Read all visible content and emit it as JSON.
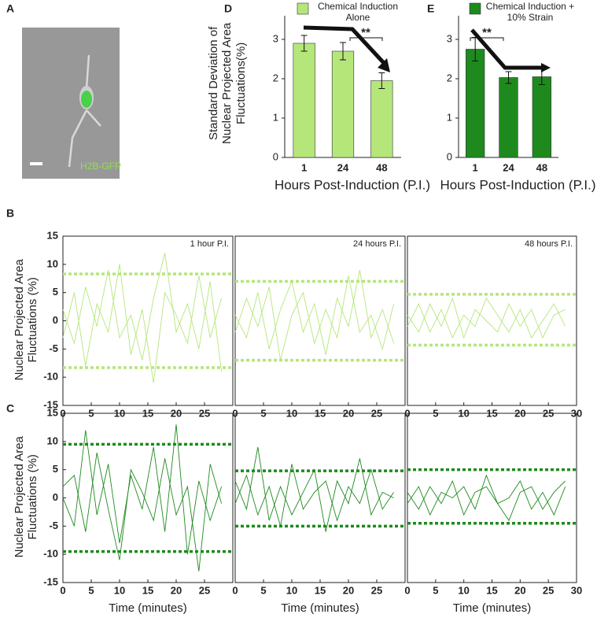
{
  "image_panel": {
    "label": "A",
    "caption": "H2B-GFP"
  },
  "chart_data": [
    {
      "type": "bar",
      "panel_label": "D",
      "categories": [
        "1",
        "24",
        "48"
      ],
      "series": [
        {
          "name": "Chemical Induction Alone",
          "color": "#b5e67a",
          "values": [
            2.9,
            2.7,
            1.95
          ],
          "errors": [
            0.2,
            0.22,
            0.2
          ]
        }
      ],
      "ylim": [
        0,
        3.6
      ],
      "yticks": [
        0,
        1,
        2,
        3
      ],
      "ylabel": "Standard Deviation of Nuclear Projected Area Fluctuations(%)",
      "xlabel": "Hours Post-Induction (P.I.)",
      "annotation": "**"
    },
    {
      "type": "bar",
      "panel_label": "E",
      "categories": [
        "1",
        "24",
        "48"
      ],
      "series": [
        {
          "name": "Chemical Induction + 10% Strain",
          "color": "#1e8a1e",
          "values": [
            2.75,
            2.03,
            2.05
          ],
          "errors": [
            0.3,
            0.15,
            0.2
          ]
        }
      ],
      "ylim": [
        0,
        3.6
      ],
      "yticks": [
        0,
        1,
        2,
        3
      ],
      "xlabel": "Hours Post-Induction (P.I.)",
      "annotation": "**"
    },
    {
      "type": "line",
      "panel_label": "B",
      "annotation": "1 hour P.I.",
      "ylabel": "Nuclear Projected Area Fluctuations (%)",
      "x": [
        0,
        2,
        4,
        6,
        8,
        10,
        12,
        14,
        16,
        18,
        20,
        22,
        24,
        26,
        28
      ],
      "xlim": [
        0,
        30
      ],
      "xticks": [
        0,
        5,
        10,
        15,
        20,
        25
      ],
      "ylim": [
        -15,
        15
      ],
      "yticks": [
        -15,
        -10,
        -5,
        0,
        5,
        10,
        15
      ],
      "thresholds": [
        8.3,
        -8.3
      ],
      "color": "#b5e67a",
      "series": [
        {
          "values": [
            2,
            -4,
            6,
            -1,
            9,
            -3,
            1,
            -7,
            4,
            12,
            -2,
            3,
            -5,
            7,
            -9
          ]
        },
        {
          "values": [
            -3,
            5,
            -8,
            3,
            -2,
            10,
            -6,
            2,
            -11,
            5,
            1,
            -4,
            8,
            -3,
            4
          ]
        }
      ]
    },
    {
      "type": "line",
      "annotation": "24 hours P.I.",
      "x": [
        0,
        2,
        4,
        6,
        8,
        10,
        12,
        14,
        16,
        18,
        20,
        22,
        24,
        26,
        28
      ],
      "xlim": [
        0,
        30
      ],
      "xticks": [
        0,
        5,
        10,
        15,
        20,
        25
      ],
      "ylim": [
        -15,
        15
      ],
      "thresholds": [
        7,
        -7
      ],
      "color": "#b5e67a",
      "series": [
        {
          "values": [
            1,
            -3,
            5,
            -5,
            2,
            7,
            -2,
            3,
            -6,
            4,
            -1,
            9,
            -3,
            2,
            -4
          ]
        },
        {
          "values": [
            -2,
            4,
            -1,
            6,
            -7,
            1,
            5,
            -4,
            2,
            -3,
            8,
            -2,
            1,
            -5,
            3
          ]
        }
      ]
    },
    {
      "type": "line",
      "annotation": "48 hours P.I.",
      "x": [
        0,
        2,
        4,
        6,
        8,
        10,
        12,
        14,
        16,
        18,
        20,
        22,
        24,
        26,
        28
      ],
      "xlim": [
        0,
        30
      ],
      "xticks": [
        0,
        5,
        10,
        15,
        20,
        25,
        30
      ],
      "ylim": [
        -15,
        15
      ],
      "thresholds": [
        4.7,
        -4.3
      ],
      "color": "#b5e67a",
      "series": [
        {
          "values": [
            1,
            -2,
            3,
            -1,
            4,
            -3,
            2,
            0,
            -2,
            3,
            -1,
            2,
            -3,
            1,
            2
          ]
        },
        {
          "values": [
            -1,
            3,
            -2,
            2,
            -3,
            1,
            -1,
            4,
            1,
            -2,
            2,
            -3,
            0,
            3,
            -1
          ]
        }
      ]
    },
    {
      "type": "line",
      "panel_label": "C",
      "ylabel": "Nuclear Projected Area Fluctuations (%)",
      "xlabel": "Time (minutes)",
      "x": [
        0,
        2,
        4,
        6,
        8,
        10,
        12,
        14,
        16,
        18,
        20,
        22,
        24,
        26,
        28
      ],
      "xlim": [
        0,
        30
      ],
      "xticks": [
        0,
        5,
        10,
        15,
        20,
        25
      ],
      "ylim": [
        -15,
        15
      ],
      "yticks": [
        -15,
        -10,
        -5,
        0,
        5,
        10,
        15
      ],
      "thresholds": [
        9.5,
        -9.5
      ],
      "color": "#1e8a1e",
      "series": [
        {
          "values": [
            0,
            -5,
            12,
            -3,
            6,
            -8,
            4,
            -2,
            9,
            -6,
            13,
            -10,
            3,
            -4,
            2
          ]
        },
        {
          "values": [
            2,
            4,
            -6,
            8,
            -2,
            -11,
            5,
            1,
            -4,
            7,
            -3,
            2,
            -13,
            6,
            -1
          ]
        }
      ]
    },
    {
      "type": "line",
      "xlabel": "Time (minutes)",
      "x": [
        0,
        2,
        4,
        6,
        8,
        10,
        12,
        14,
        16,
        18,
        20,
        22,
        24,
        26,
        28
      ],
      "xlim": [
        0,
        30
      ],
      "xticks": [
        0,
        5,
        10,
        15,
        20,
        25
      ],
      "ylim": [
        -15,
        15
      ],
      "thresholds": [
        4.8,
        -5
      ],
      "color": "#1e8a1e",
      "series": [
        {
          "values": [
            3,
            -2,
            9,
            -4,
            2,
            -3,
            1,
            5,
            -6,
            3,
            -1,
            7,
            -3,
            1,
            0
          ]
        },
        {
          "values": [
            -1,
            4,
            -3,
            2,
            -5,
            6,
            -2,
            1,
            3,
            -4,
            2,
            -1,
            5,
            -2,
            1
          ]
        }
      ]
    },
    {
      "type": "line",
      "xlabel": "Time (minutes)",
      "x": [
        0,
        2,
        4,
        6,
        8,
        10,
        12,
        14,
        16,
        18,
        20,
        22,
        24,
        26,
        28
      ],
      "xlim": [
        0,
        30
      ],
      "xticks": [
        0,
        5,
        10,
        15,
        20,
        25,
        30
      ],
      "ylim": [
        -15,
        15
      ],
      "thresholds": [
        5,
        -4.5
      ],
      "color": "#1e8a1e",
      "series": [
        {
          "values": [
            1,
            -2,
            2,
            -1,
            3,
            -3,
            1,
            2,
            -1,
            0,
            3,
            -2,
            1,
            -3,
            2
          ]
        },
        {
          "values": [
            -1,
            2,
            -3,
            1,
            0,
            2,
            -2,
            4,
            -1,
            -4,
            1,
            2,
            -2,
            1,
            3
          ]
        }
      ]
    }
  ]
}
